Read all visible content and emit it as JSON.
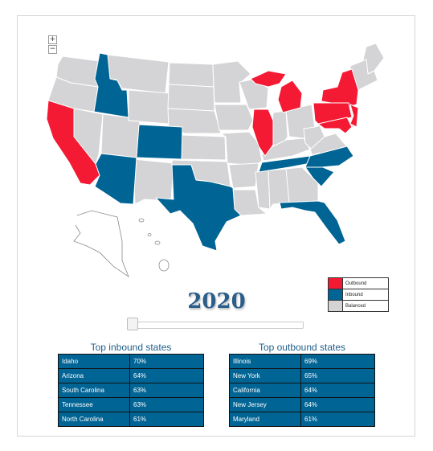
{
  "year": "2020",
  "colors": {
    "outbound": "#f41a33",
    "inbound": "#006494",
    "balanced": "#d4d4d6",
    "border": "#ffffff"
  },
  "zoom": {
    "in_label": "+",
    "out_label": "−"
  },
  "legend": [
    {
      "label": "Outbound",
      "color": "#f41a33"
    },
    {
      "label": "Inbound",
      "color": "#006494"
    },
    {
      "label": "Balanced",
      "color": "#d4d4d6"
    }
  ],
  "states": {
    "outbound": [
      "California",
      "Illinois",
      "Michigan",
      "New York",
      "Pennsylvania",
      "New Jersey",
      "Maryland"
    ],
    "inbound": [
      "Idaho",
      "Colorado",
      "Arizona",
      "Texas",
      "Tennessee",
      "North Carolina",
      "South Carolina",
      "Florida"
    ]
  },
  "inbound_table": {
    "title": "Top inbound states",
    "rows": [
      {
        "state": "Idaho",
        "pct": "70%"
      },
      {
        "state": "Arizona",
        "pct": "64%"
      },
      {
        "state": "South Carolina",
        "pct": "63%"
      },
      {
        "state": "Tennessee",
        "pct": "63%"
      },
      {
        "state": "North Carolina",
        "pct": "61%"
      }
    ]
  },
  "outbound_table": {
    "title": "Top outbound states",
    "rows": [
      {
        "state": "Illinois",
        "pct": "69%"
      },
      {
        "state": "New York",
        "pct": "65%"
      },
      {
        "state": "California",
        "pct": "64%"
      },
      {
        "state": "New Jersey",
        "pct": "64%"
      },
      {
        "state": "Maryland",
        "pct": "61%"
      }
    ]
  }
}
